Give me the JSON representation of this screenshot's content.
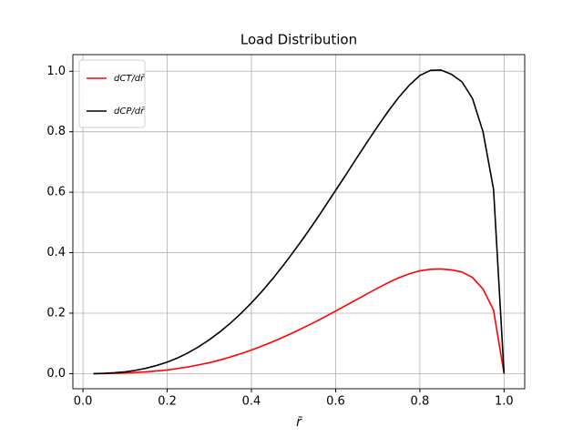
{
  "chart_data": {
    "type": "line",
    "title": "Load Distribution",
    "x_label": "r̄",
    "x": [
      0.025,
      0.05,
      0.075,
      0.1,
      0.125,
      0.15,
      0.175,
      0.2,
      0.225,
      0.25,
      0.275,
      0.3,
      0.325,
      0.35,
      0.375,
      0.4,
      0.425,
      0.45,
      0.475,
      0.5,
      0.525,
      0.55,
      0.575,
      0.6,
      0.625,
      0.65,
      0.675,
      0.7,
      0.725,
      0.75,
      0.775,
      0.8,
      0.825,
      0.85,
      0.875,
      0.9,
      0.925,
      0.95,
      0.975,
      1.0
    ],
    "series": [
      {
        "name": "dCT/dr̄",
        "color": "#ff0000",
        "values": [
          0,
          0.0003,
          0.001,
          0.002,
          0.004,
          0.006,
          0.009,
          0.012,
          0.017,
          0.022,
          0.029,
          0.036,
          0.045,
          0.055,
          0.066,
          0.078,
          0.091,
          0.105,
          0.12,
          0.136,
          0.153,
          0.17,
          0.188,
          0.207,
          0.226,
          0.245,
          0.264,
          0.283,
          0.301,
          0.317,
          0.33,
          0.34,
          0.345,
          0.346,
          0.343,
          0.336,
          0.318,
          0.28,
          0.21,
          0
        ]
      },
      {
        "name": "dCP/dr̄",
        "color": "#000000",
        "values": [
          0,
          0.001,
          0.003,
          0.006,
          0.011,
          0.018,
          0.027,
          0.038,
          0.052,
          0.069,
          0.089,
          0.112,
          0.138,
          0.167,
          0.199,
          0.234,
          0.272,
          0.313,
          0.357,
          0.403,
          0.451,
          0.501,
          0.553,
          0.606,
          0.659,
          0.713,
          0.766,
          0.818,
          0.868,
          0.914,
          0.954,
          0.986,
          1.003,
          1.004,
          0.99,
          0.965,
          0.91,
          0.8,
          0.61,
          0
        ]
      }
    ],
    "xlim": [
      -0.024,
      1.049
    ],
    "ylim": [
      -0.05,
      1.055
    ],
    "xticks": [
      {
        "value": 0,
        "label": "0.0"
      },
      0.2,
      0.4,
      0.6,
      0.8,
      {
        "value": 1,
        "label": "1.0"
      }
    ],
    "yticks": [
      {
        "value": 0,
        "label": "0.0"
      },
      0.2,
      0.4,
      0.6,
      0.8,
      {
        "value": 1,
        "label": "1.0"
      }
    ],
    "grid": true,
    "legend": "upper-left"
  }
}
